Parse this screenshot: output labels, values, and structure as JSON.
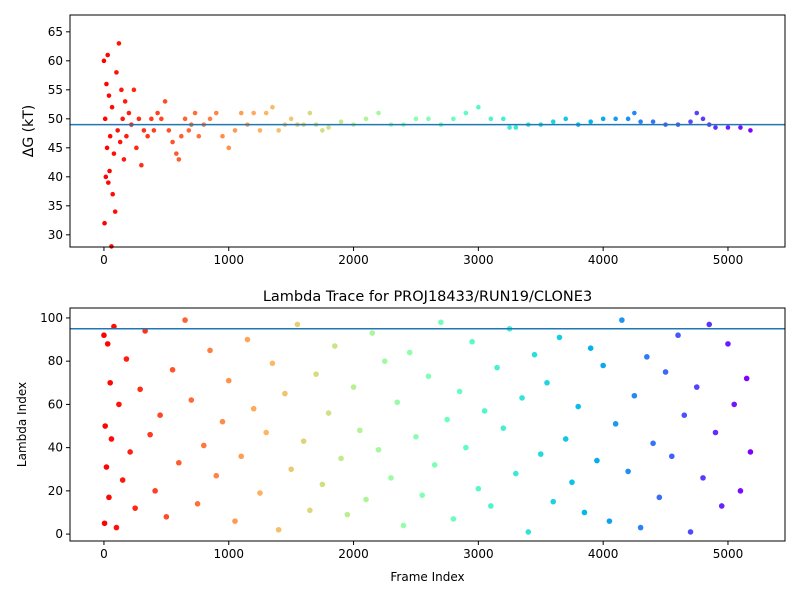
{
  "chart_data": [
    {
      "type": "scatter",
      "ylabel": "ΔG (kT)",
      "colormap": "rainbow_r",
      "hline": 49,
      "hline_color": "#1f77b4",
      "xlim": [
        -272,
        5457
      ],
      "ylim": [
        27.9,
        67.9
      ],
      "xticks": [
        0,
        1000,
        2000,
        3000,
        4000,
        5000
      ],
      "yticks": [
        30,
        35,
        40,
        45,
        50,
        55,
        60,
        65
      ],
      "x": [
        0,
        5,
        10,
        15,
        20,
        25,
        30,
        35,
        40,
        45,
        50,
        60,
        65,
        70,
        80,
        90,
        100,
        110,
        120,
        130,
        140,
        150,
        160,
        170,
        180,
        200,
        220,
        240,
        260,
        280,
        300,
        320,
        350,
        380,
        400,
        430,
        460,
        490,
        520,
        550,
        580,
        600,
        620,
        650,
        680,
        700,
        730,
        760,
        800,
        850,
        900,
        950,
        1000,
        1050,
        1100,
        1150,
        1200,
        1250,
        1300,
        1350,
        1400,
        1450,
        1500,
        1550,
        1600,
        1650,
        1700,
        1750,
        1800,
        1900,
        2000,
        2100,
        2200,
        2300,
        2400,
        2500,
        2600,
        2700,
        2800,
        2900,
        3000,
        3100,
        3200,
        3250,
        3300,
        3400,
        3500,
        3600,
        3700,
        3800,
        3900,
        4000,
        4100,
        4200,
        4250,
        4300,
        4400,
        4500,
        4600,
        4700,
        4750,
        4800,
        4850,
        4900,
        5000,
        5100,
        5180
      ],
      "y": [
        60,
        32,
        50,
        40,
        56,
        45,
        61,
        39,
        54,
        41,
        47,
        28,
        52,
        37,
        44,
        34,
        58,
        48,
        63,
        46,
        55,
        50,
        43,
        53,
        47,
        51,
        49,
        55,
        45,
        50,
        42,
        48,
        47,
        50,
        48,
        51,
        50,
        53,
        48,
        46,
        44,
        43,
        47,
        50,
        48,
        49,
        51,
        47,
        49,
        50,
        51,
        47,
        45,
        48,
        51,
        49,
        51,
        48,
        51,
        52,
        48,
        49,
        50,
        49,
        49,
        51,
        49,
        48,
        48.5,
        49.5,
        49,
        50,
        51,
        49,
        49,
        50,
        50,
        49,
        50,
        51,
        52,
        50,
        50,
        48.5,
        48.5,
        49,
        49,
        49.5,
        50,
        49,
        49.5,
        50,
        50,
        50,
        51,
        49.5,
        49.5,
        49,
        49,
        49.5,
        51,
        50,
        49,
        48.5,
        48.5,
        48.5,
        48
      ]
    },
    {
      "type": "scatter",
      "title": "Lambda Trace for PROJ18433/RUN19/CLONE3",
      "xlabel": "Frame Index",
      "ylabel": "Lambda Index",
      "colormap": "rainbow_r",
      "hline": 95,
      "hline_color": "#1f77b4",
      "xlim": [
        -272,
        5457
      ],
      "ylim": [
        -3.2,
        104.6
      ],
      "xticks": [
        0,
        1000,
        2000,
        3000,
        4000,
        5000
      ],
      "yticks": [
        0,
        20,
        40,
        60,
        80,
        100
      ],
      "x": [
        0,
        5,
        10,
        20,
        30,
        40,
        50,
        60,
        80,
        100,
        120,
        150,
        180,
        210,
        250,
        290,
        330,
        370,
        410,
        450,
        500,
        550,
        600,
        650,
        700,
        750,
        800,
        850,
        900,
        950,
        1000,
        1050,
        1100,
        1150,
        1200,
        1250,
        1300,
        1350,
        1400,
        1450,
        1500,
        1550,
        1600,
        1650,
        1700,
        1750,
        1800,
        1850,
        1900,
        1950,
        2000,
        2050,
        2100,
        2150,
        2200,
        2250,
        2300,
        2350,
        2400,
        2450,
        2500,
        2550,
        2600,
        2650,
        2700,
        2750,
        2800,
        2850,
        2900,
        2950,
        3000,
        3050,
        3100,
        3150,
        3200,
        3250,
        3300,
        3350,
        3400,
        3450,
        3500,
        3550,
        3600,
        3650,
        3700,
        3750,
        3800,
        3850,
        3900,
        3950,
        4000,
        4050,
        4100,
        4150,
        4200,
        4250,
        4300,
        4350,
        4400,
        4450,
        4500,
        4550,
        4600,
        4650,
        4700,
        4750,
        4800,
        4850,
        4900,
        4950,
        5000,
        5050,
        5100,
        5150,
        5180
      ],
      "y": [
        92,
        5,
        50,
        31,
        88,
        17,
        70,
        44,
        96,
        3,
        60,
        25,
        81,
        38,
        12,
        67,
        94,
        46,
        20,
        55,
        8,
        76,
        33,
        99,
        62,
        14,
        41,
        85,
        27,
        52,
        71,
        6,
        36,
        90,
        58,
        19,
        47,
        79,
        2,
        65,
        30,
        97,
        43,
        11,
        74,
        23,
        56,
        87,
        35,
        9,
        68,
        48,
        16,
        93,
        39,
        80,
        26,
        61,
        4,
        84,
        45,
        18,
        73,
        32,
        98,
        53,
        7,
        66,
        40,
        89,
        21,
        57,
        13,
        77,
        49,
        95,
        28,
        63,
        1,
        83,
        37,
        70,
        15,
        91,
        44,
        24,
        59,
        10,
        86,
        34,
        78,
        6,
        51,
        99,
        29,
        64,
        3,
        82,
        42,
        17,
        75,
        36,
        92,
        55,
        1,
        68,
        26,
        97,
        47,
        13,
        88,
        60,
        20,
        72,
        38
      ]
    }
  ]
}
